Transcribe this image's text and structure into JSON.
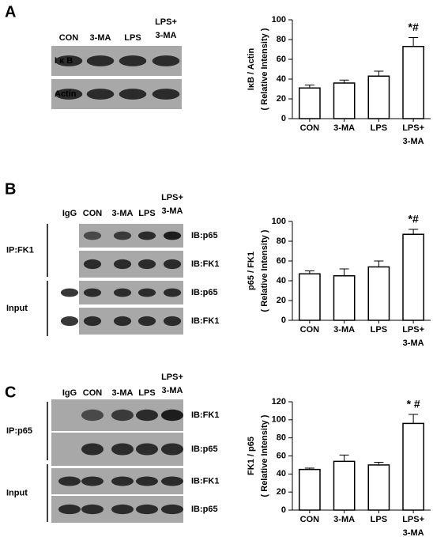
{
  "panels": [
    {
      "label": "A",
      "lanes": [
        "CON",
        "3-MA",
        "LPS",
        "LPS+\n3-MA"
      ],
      "blot_rows": [
        "I κ B",
        "Actin"
      ]
    },
    {
      "label": "B",
      "lanes": [
        "IgG",
        "CON",
        "3-MA",
        "LPS",
        "LPS+\n3-MA"
      ],
      "groups": [
        "IP:FK1",
        "Input"
      ],
      "blot_rows": [
        "IB:p65",
        "IB:FK1",
        "IB:p65",
        "IB:FK1"
      ]
    },
    {
      "label": "C",
      "lanes": [
        "IgG",
        "CON",
        "3-MA",
        "LPS",
        "LPS+\n3-MA"
      ],
      "groups": [
        "IP:p65",
        "Input"
      ],
      "blot_rows": [
        "IB:FK1",
        "IB:p65",
        "IB:FK1",
        "IB:p65"
      ]
    }
  ],
  "chart_data": [
    {
      "type": "bar",
      "y_label": "IκB / Actin",
      "y_sublabel": "( Relative Intensity )",
      "categories": [
        "CON",
        "3-MA",
        "LPS",
        "LPS+\n3-MA"
      ],
      "values": [
        31,
        36,
        43,
        73
      ],
      "errors": [
        3,
        3,
        5,
        9
      ],
      "color": "#ffffff",
      "edgecolor": "#000000",
      "annotation": "*#",
      "ylim": [
        0,
        100
      ],
      "yticks": [
        0,
        20,
        40,
        60,
        80,
        100
      ]
    },
    {
      "type": "bar",
      "y_label": "p65 / FK1",
      "y_sublabel": "( Relative Intensity )",
      "categories": [
        "CON",
        "3-MA",
        "LPS",
        "LPS+\n3-MA"
      ],
      "values": [
        47,
        45,
        54,
        87
      ],
      "errors": [
        3,
        7,
        6,
        5
      ],
      "color": "#ffffff",
      "edgecolor": "#000000",
      "annotation": "*#",
      "ylim": [
        0,
        100
      ],
      "yticks": [
        0,
        20,
        40,
        60,
        80,
        100
      ]
    },
    {
      "type": "bar",
      "y_label": "FK1 / p65",
      "y_sublabel": "( Relative Intensity )",
      "categories": [
        "CON",
        "3-MA",
        "LPS",
        "LPS+\n3-MA"
      ],
      "values": [
        45,
        54,
        50,
        96
      ],
      "errors": [
        1.5,
        7,
        3,
        10
      ],
      "color": "#ffffff",
      "edgecolor": "#000000",
      "annotation": "* #",
      "ylim": [
        0,
        120
      ],
      "yticks": [
        0,
        20,
        40,
        60,
        80,
        100,
        120
      ]
    }
  ]
}
